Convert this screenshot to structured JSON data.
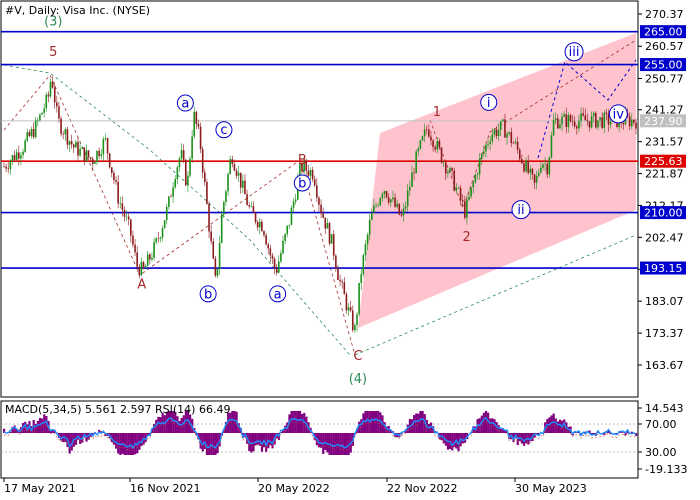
{
  "chart_data": {
    "type": "candlestick",
    "symbol_line": "#V, Daily:  Visa Inc. (NYSE)",
    "price_axis": {
      "min": 160,
      "max": 275,
      "ticks": [
        "270.37",
        "260.57",
        "250.77",
        "241.27",
        "231.57",
        "221.87",
        "212.17",
        "202.47",
        "192.77",
        "183.07",
        "173.37",
        "163.67"
      ],
      "tick_values": [
        270.37,
        260.57,
        250.77,
        241.27,
        231.57,
        221.87,
        212.17,
        202.47,
        192.77,
        183.07,
        173.37,
        163.67
      ]
    },
    "time_axis": {
      "labels": [
        "17 May 2021",
        "16 Nov 2021",
        "20 May 2022",
        "22 Nov 2022",
        "30 May 2023"
      ]
    },
    "current_price": {
      "value": 237.9,
      "label": "237.90",
      "color": "#c0c0c0"
    },
    "levels": [
      {
        "value": 265.0,
        "label": "265.00",
        "color": "#0000cc"
      },
      {
        "value": 255.0,
        "label": "255.00",
        "color": "#0000cc"
      },
      {
        "value": 225.63,
        "label": "225.63",
        "color": "#dd0000"
      },
      {
        "value": 210.0,
        "label": "210.00",
        "color": "#0000cc"
      },
      {
        "value": 193.15,
        "label": "193.15",
        "color": "#0000cc"
      }
    ],
    "price_path": [
      [
        0,
        224
      ],
      [
        0.03,
        230
      ],
      [
        0.05,
        236
      ],
      [
        0.07,
        245
      ],
      [
        0.075,
        252
      ],
      [
        0.085,
        238
      ],
      [
        0.11,
        230
      ],
      [
        0.14,
        226
      ],
      [
        0.16,
        232
      ],
      [
        0.18,
        215
      ],
      [
        0.2,
        204
      ],
      [
        0.21,
        194
      ],
      [
        0.22,
        192
      ],
      [
        0.24,
        200
      ],
      [
        0.26,
        212
      ],
      [
        0.27,
        222
      ],
      [
        0.28,
        228
      ],
      [
        0.29,
        218
      ],
      [
        0.3,
        240
      ],
      [
        0.31,
        232
      ],
      [
        0.32,
        214
      ],
      [
        0.33,
        196
      ],
      [
        0.335,
        188
      ],
      [
        0.345,
        210
      ],
      [
        0.36,
        228
      ],
      [
        0.37,
        222
      ],
      [
        0.39,
        210
      ],
      [
        0.41,
        206
      ],
      [
        0.42,
        198
      ],
      [
        0.43,
        192
      ],
      [
        0.45,
        206
      ],
      [
        0.47,
        224
      ],
      [
        0.49,
        222
      ],
      [
        0.5,
        212
      ],
      [
        0.52,
        200
      ],
      [
        0.53,
        190
      ],
      [
        0.545,
        180
      ],
      [
        0.555,
        174
      ],
      [
        0.565,
        192
      ],
      [
        0.58,
        208
      ],
      [
        0.6,
        218
      ],
      [
        0.63,
        208
      ],
      [
        0.65,
        225
      ],
      [
        0.67,
        236
      ],
      [
        0.69,
        228
      ],
      [
        0.71,
        220
      ],
      [
        0.73,
        210
      ],
      [
        0.75,
        224
      ],
      [
        0.77,
        234
      ],
      [
        0.79,
        236
      ],
      [
        0.81,
        230
      ],
      [
        0.83,
        222
      ],
      [
        0.84,
        218
      ],
      [
        0.85,
        226
      ],
      [
        0.86,
        224
      ],
      [
        0.87,
        238
      ]
    ],
    "waves": [
      {
        "text": "(3)",
        "color": "#2e8b57",
        "price": 268.3,
        "t": 0.078
      },
      {
        "text": "5",
        "color": "#a52a2a",
        "price": 259.0,
        "t": 0.078
      },
      {
        "text": "a",
        "color": "#0000cc",
        "price": 243.3,
        "t": 0.287,
        "circled": true
      },
      {
        "text": "c",
        "color": "#0000cc",
        "price": 235.2,
        "t": 0.348,
        "circled": true
      },
      {
        "text": "B",
        "color": "#a52a2a",
        "price": 226.2,
        "t": 0.472
      },
      {
        "text": "b",
        "color": "#0000cc",
        "price": 219.0,
        "t": 0.472,
        "circled": true
      },
      {
        "text": "A",
        "color": "#a52a2a",
        "price": 188.3,
        "t": 0.218
      },
      {
        "text": "b",
        "color": "#0000cc",
        "price": 185.3,
        "t": 0.323,
        "circled": true
      },
      {
        "text": "a",
        "color": "#0000cc",
        "price": 185.3,
        "t": 0.433,
        "circled": true
      },
      {
        "text": "C",
        "color": "#a52a2a",
        "price": 166.5,
        "t": 0.56
      },
      {
        "text": "(4)",
        "color": "#2e8b57",
        "price": 159.5,
        "t": 0.56
      },
      {
        "text": "1",
        "color": "#a52a2a",
        "price": 240.8,
        "t": 0.685
      },
      {
        "text": "i",
        "color": "#0000cc",
        "price": 243.5,
        "t": 0.767,
        "circled": true
      },
      {
        "text": "2",
        "color": "#a52a2a",
        "price": 202.7,
        "t": 0.732
      },
      {
        "text": "ii",
        "color": "#0000cc",
        "price": 210.9,
        "t": 0.818,
        "circled": true
      },
      {
        "text": "iii",
        "color": "#0000cc",
        "price": 258.9,
        "t": 0.902,
        "circled": true
      },
      {
        "text": "iv",
        "color": "#0000cc",
        "price": 240.0,
        "t": 0.972,
        "circled": true
      }
    ],
    "indicator": {
      "label": "MACD(5,34,5) 5.561 2.597 RSI(14) 66.49",
      "ticks": [
        "14.543",
        "70.00",
        "30.00",
        "-19.133"
      ]
    }
  }
}
